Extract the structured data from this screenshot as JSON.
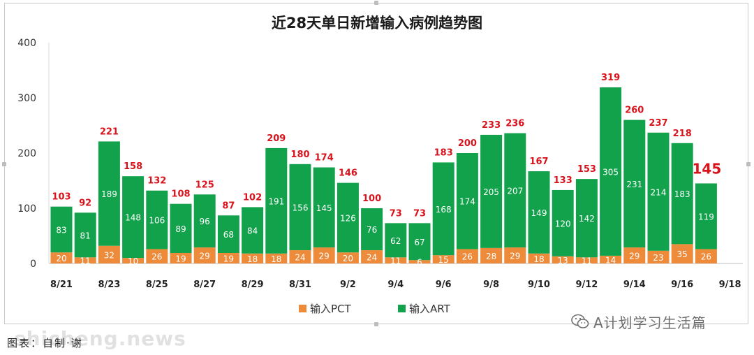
{
  "chart_data": {
    "type": "bar",
    "stacked": true,
    "title": "近28天单日新增输入病例趋势图",
    "x_tick_labels": [
      "8/21",
      "8/23",
      "8/25",
      "8/27",
      "8/29",
      "8/31",
      "9/2",
      "9/4",
      "9/6",
      "9/8",
      "9/10",
      "9/12",
      "9/14",
      "9/16",
      "9/18"
    ],
    "y_ticks": [
      "0",
      "100",
      "200",
      "300",
      "400"
    ],
    "ylim": [
      0,
      400
    ],
    "grid": false,
    "legend_position": "bottom",
    "categories": [
      "8/21",
      "8/22",
      "8/23",
      "8/24",
      "8/25",
      "8/26",
      "8/27",
      "8/28",
      "8/29",
      "8/30",
      "8/31",
      "9/1",
      "9/2",
      "9/3",
      "9/4",
      "9/5",
      "9/6",
      "9/7",
      "9/8",
      "9/9",
      "9/10",
      "9/11",
      "9/12",
      "9/13",
      "9/14",
      "9/15",
      "9/16",
      "9/17"
    ],
    "series": [
      {
        "name": "输入PCT",
        "color": "#ed8b3a",
        "values": [
          20,
          11,
          32,
          10,
          26,
          19,
          29,
          19,
          18,
          18,
          24,
          29,
          20,
          24,
          11,
          6,
          15,
          26,
          28,
          29,
          18,
          13,
          11,
          14,
          29,
          23,
          35,
          26
        ]
      },
      {
        "name": "输入ART",
        "color": "#12a24b",
        "values": [
          83,
          81,
          189,
          148,
          106,
          89,
          96,
          68,
          84,
          191,
          156,
          145,
          126,
          76,
          62,
          67,
          168,
          174,
          205,
          207,
          149,
          120,
          142,
          305,
          231,
          214,
          183,
          119
        ]
      }
    ],
    "totals": [
      103,
      92,
      221,
      158,
      132,
      108,
      125,
      87,
      102,
      209,
      180,
      174,
      146,
      100,
      73,
      73,
      183,
      200,
      233,
      236,
      167,
      133,
      153,
      319,
      260,
      237,
      218,
      145
    ],
    "total_label_color": "#d9131c"
  },
  "watermark": {
    "icon": "wechat-icon",
    "text": "A计划学习生活篇"
  },
  "overlay": {
    "site_text": "shicheng.news",
    "source_text": "图表：自制·谢"
  }
}
